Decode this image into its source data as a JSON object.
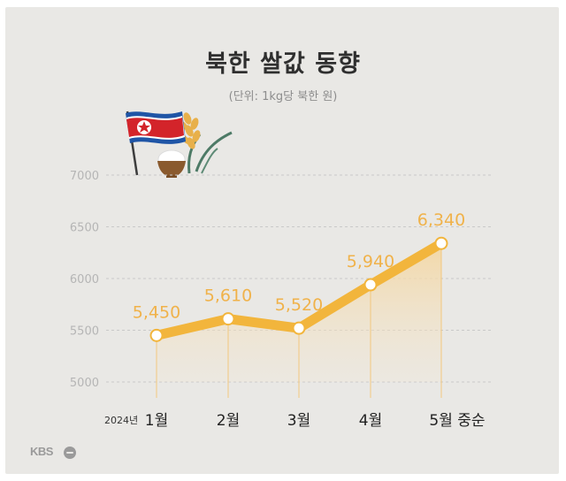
{
  "chart_data": {
    "type": "line",
    "title": "북한 쌀값 동향",
    "subtitle": "(단위: 1kg당 북한 원)",
    "x_prefix": "2024년",
    "categories": [
      "1월",
      "2월",
      "3월",
      "4월",
      "5월 중순"
    ],
    "values": [
      5450,
      5610,
      5520,
      5940,
      6340
    ],
    "value_labels": [
      "5,450",
      "5,610",
      "5,520",
      "5,940",
      "6,340"
    ],
    "y_ticks": [
      "5000",
      "5500",
      "6000",
      "6500",
      "7000"
    ],
    "ylim": [
      5000,
      7000
    ],
    "grid": true,
    "line_color": "#f2b53c",
    "label_color": "#f0b24a"
  },
  "brand": {
    "logo": "KBS"
  },
  "icons": [
    "north-korea-flag-icon",
    "rice-bowl-icon",
    "rice-plant-icon"
  ]
}
